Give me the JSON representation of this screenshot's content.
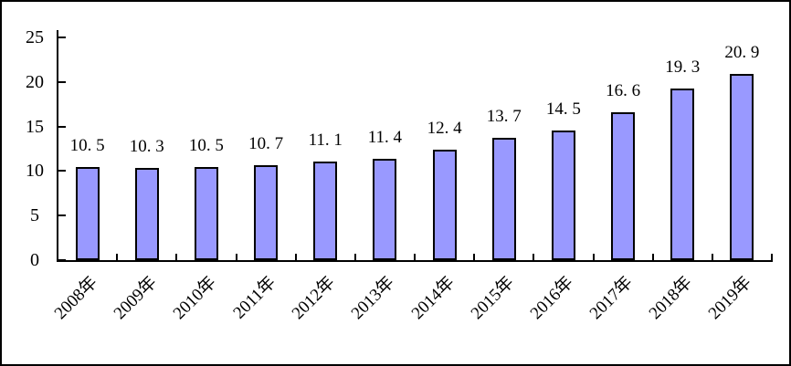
{
  "chart_data": {
    "type": "bar",
    "title": "",
    "xlabel": "",
    "ylabel": "",
    "categories": [
      "2008年",
      "2009年",
      "2010年",
      "2011年",
      "2012年",
      "2013年",
      "2014年",
      "2015年",
      "2016年",
      "2017年",
      "2018年",
      "2019年"
    ],
    "values": [
      10.5,
      10.3,
      10.5,
      10.7,
      11.1,
      11.4,
      12.4,
      13.7,
      14.5,
      16.6,
      19.3,
      20.9
    ],
    "value_labels": [
      "10. 5",
      "10. 3",
      "10. 5",
      "10. 7",
      "11. 1",
      "11. 4",
      "12. 4",
      "13. 7",
      "14. 5",
      "16. 6",
      "19. 3",
      "20. 9"
    ],
    "ylim": [
      0,
      25
    ],
    "yticks": [
      0,
      5,
      10,
      15,
      20,
      25
    ],
    "grid": false,
    "legend": null,
    "colors": {
      "bar_fill": "#9999FF",
      "bar_border": "#000000",
      "axis": "#000000",
      "text": "#000000",
      "background": "#FFFFFF"
    }
  }
}
